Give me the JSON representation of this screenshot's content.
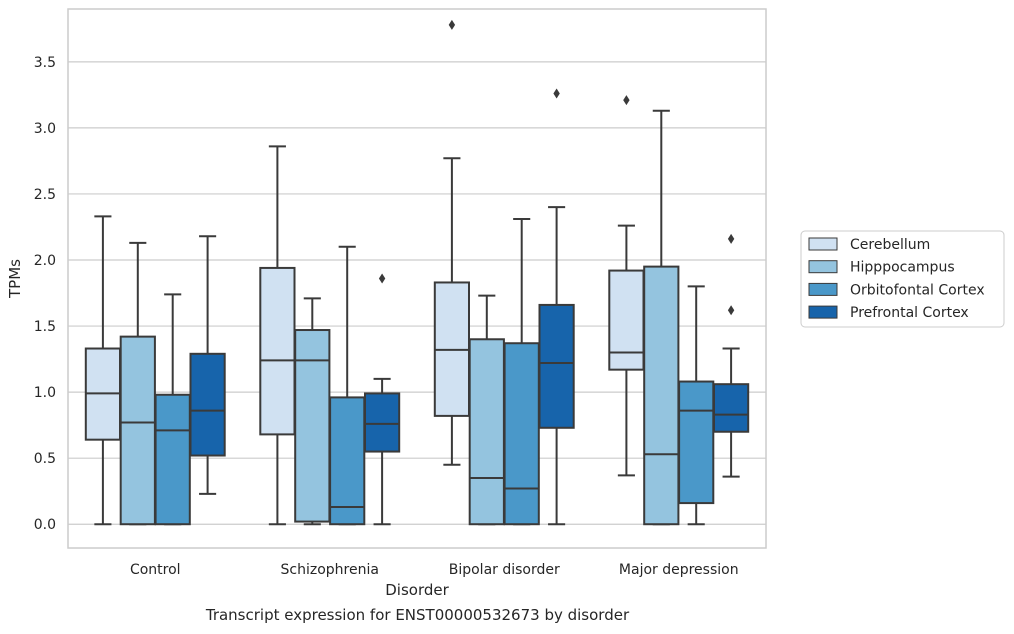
{
  "caption": "Transcript expression for ENST00000532673 by disorder",
  "chart_data": {
    "type": "boxplot",
    "xlabel": "Disorder",
    "ylabel": "TPMs",
    "categories": [
      "Control",
      "Schizophrenia",
      "Bipolar disorder",
      "Major depression"
    ],
    "ylim": [
      -0.18,
      3.9
    ],
    "yticks": [
      "0.0",
      "0.5",
      "1.0",
      "1.5",
      "2.0",
      "2.5",
      "3.0",
      "3.5"
    ],
    "grid": "horizontal",
    "legend_position": "right",
    "series": [
      {
        "name": "Cerebellum",
        "color": "#d0e1f2",
        "boxes": [
          {
            "whislo": 0.0,
            "q1": 0.64,
            "med": 0.99,
            "q3": 1.33,
            "whishi": 2.33,
            "fliers": []
          },
          {
            "whislo": 0.0,
            "q1": 0.68,
            "med": 1.24,
            "q3": 1.94,
            "whishi": 2.86,
            "fliers": []
          },
          {
            "whislo": 0.45,
            "q1": 0.82,
            "med": 1.32,
            "q3": 1.83,
            "whishi": 2.77,
            "fliers": [
              3.78
            ]
          },
          {
            "whislo": 0.37,
            "q1": 1.17,
            "med": 1.3,
            "q3": 1.92,
            "whishi": 2.26,
            "fliers": [
              3.21
            ]
          }
        ]
      },
      {
        "name": "Hipppocampus",
        "color": "#94c4df",
        "boxes": [
          {
            "whislo": 0.0,
            "q1": 0.0,
            "med": 0.77,
            "q3": 1.42,
            "whishi": 2.13,
            "fliers": []
          },
          {
            "whislo": 0.0,
            "q1": 0.02,
            "med": 1.24,
            "q3": 1.47,
            "whishi": 1.71,
            "fliers": []
          },
          {
            "whislo": 0.0,
            "q1": 0.0,
            "med": 0.35,
            "q3": 1.4,
            "whishi": 1.73,
            "fliers": []
          },
          {
            "whislo": 0.0,
            "q1": 0.0,
            "med": 0.53,
            "q3": 1.95,
            "whishi": 3.13,
            "fliers": []
          }
        ]
      },
      {
        "name": "Orbitofontal Cortex",
        "color": "#4a98c9",
        "boxes": [
          {
            "whislo": 0.0,
            "q1": 0.0,
            "med": 0.71,
            "q3": 0.98,
            "whishi": 1.74,
            "fliers": []
          },
          {
            "whislo": 0.0,
            "q1": 0.0,
            "med": 0.13,
            "q3": 0.96,
            "whishi": 2.1,
            "fliers": []
          },
          {
            "whislo": 0.0,
            "q1": 0.0,
            "med": 0.27,
            "q3": 1.37,
            "whishi": 2.31,
            "fliers": []
          },
          {
            "whislo": 0.0,
            "q1": 0.16,
            "med": 0.86,
            "q3": 1.08,
            "whishi": 1.8,
            "fliers": []
          }
        ]
      },
      {
        "name": "Prefrontal Cortex",
        "color": "#1764ab",
        "boxes": [
          {
            "whislo": 0.23,
            "q1": 0.52,
            "med": 0.86,
            "q3": 1.29,
            "whishi": 2.18,
            "fliers": []
          },
          {
            "whislo": 0.0,
            "q1": 0.55,
            "med": 0.76,
            "q3": 0.99,
            "whishi": 1.1,
            "fliers": [
              1.86
            ]
          },
          {
            "whislo": 0.0,
            "q1": 0.73,
            "med": 1.22,
            "q3": 1.66,
            "whishi": 2.4,
            "fliers": [
              3.26
            ]
          },
          {
            "whislo": 0.36,
            "q1": 0.7,
            "med": 0.83,
            "q3": 1.06,
            "whishi": 1.33,
            "fliers": [
              1.62,
              2.16
            ]
          }
        ]
      }
    ]
  }
}
